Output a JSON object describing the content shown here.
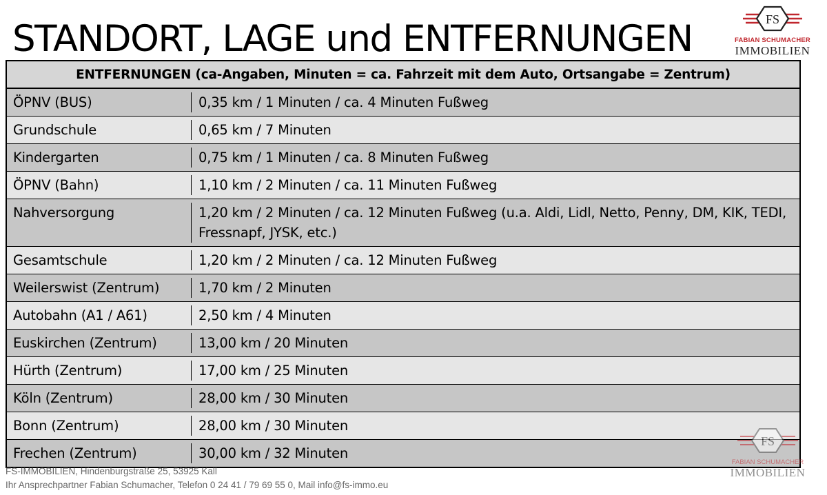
{
  "page": {
    "title": "STANDORT, LAGE und ENTFERNUNGEN"
  },
  "logo": {
    "monogram": "FS",
    "line1": "FABIAN SCHUMACHER",
    "line2": "IMMOBILIEN",
    "accent_color": "#c0262d"
  },
  "table": {
    "header": "ENTFERNUNGEN (ca-Angaben, Minuten = ca. Fahrzeit mit dem Auto, Ortsangabe = Zentrum)",
    "rows": [
      {
        "label": "ÖPNV (BUS)",
        "value": "0,35 km / 1 Minuten / ca. 4 Minuten Fußweg"
      },
      {
        "label": "Grundschule",
        "value": "0,65 km / 7 Minuten"
      },
      {
        "label": "Kindergarten",
        "value": "0,75 km / 1 Minuten / ca. 8 Minuten Fußweg"
      },
      {
        "label": "ÖPNV (Bahn)",
        "value": "1,10 km / 2 Minuten / ca. 11 Minuten Fußweg"
      },
      {
        "label": "Nahversorgung",
        "value": "1,20 km / 2 Minuten / ca. 12 Minuten Fußweg (u.a. Aldi, Lidl, Netto, Penny, DM, KIK, TEDI, Fressnapf, JYSK, etc.)"
      },
      {
        "label": "Gesamtschule",
        "value": "1,20 km / 2 Minuten / ca. 12 Minuten Fußweg"
      },
      {
        "label": "Weilerswist (Zentrum)",
        "value": "1,70 km / 2 Minuten"
      },
      {
        "label": "Autobahn (A1 / A61)",
        "value": "2,50 km / 4 Minuten"
      },
      {
        "label": "Euskirchen (Zentrum)",
        "value": "13,00 km / 20 Minuten"
      },
      {
        "label": "Hürth (Zentrum)",
        "value": "17,00 km / 25 Minuten"
      },
      {
        "label": "Köln (Zentrum)",
        "value": "28,00 km / 30 Minuten"
      },
      {
        "label": "Bonn (Zentrum)",
        "value": "28,00 km / 30 Minuten"
      },
      {
        "label": "Frechen (Zentrum)",
        "value": "30,00 km / 32 Minuten"
      }
    ]
  },
  "footer": {
    "line1": "FS-IMMOBILIEN, Hindenburgstraße 25, 53925 Kall",
    "line2": "Ihr Ansprechpartner Fabian Schumacher,  Telefon 0 24 41 / 79 69 55 0, Mail info@fs-immo.eu"
  }
}
